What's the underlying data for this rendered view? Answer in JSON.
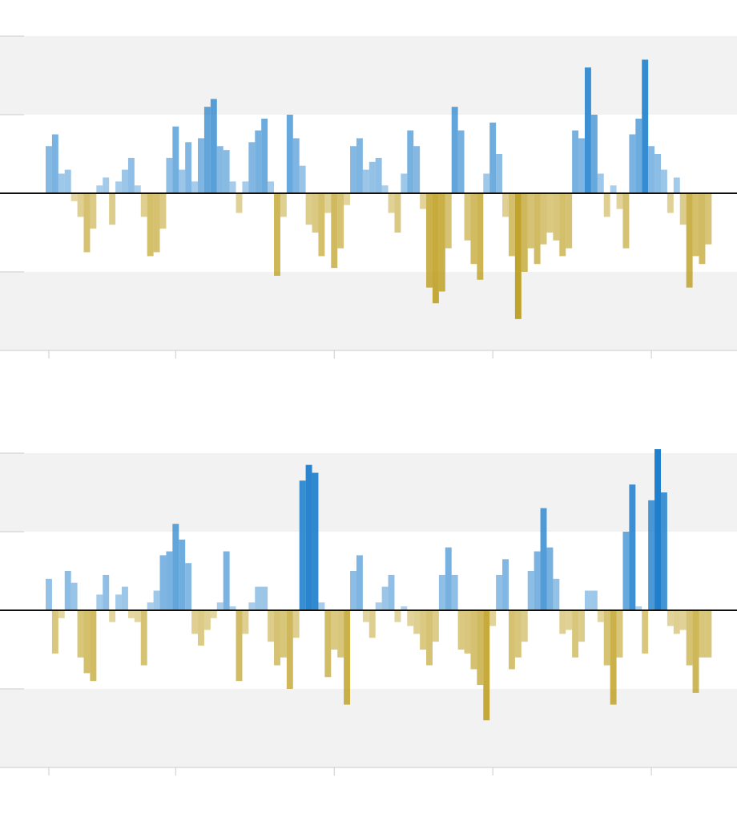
{
  "chart_data": [
    {
      "type": "bar",
      "positive_color": "#1f7fcc",
      "negative_color": "#b8960c",
      "grid": true,
      "xlim": [
        1887.3,
        2003.5
      ],
      "xticks": [
        1895,
        1915,
        1940,
        1965,
        1990
      ],
      "ylim": [
        -4,
        4
      ],
      "yticks": [
        -4,
        -2,
        0,
        2,
        4
      ],
      "x": [
        1895,
        1896,
        1897,
        1898,
        1899,
        1900,
        1901,
        1902,
        1903,
        1904,
        1905,
        1906,
        1907,
        1908,
        1909,
        1910,
        1911,
        1912,
        1913,
        1914,
        1915,
        1916,
        1917,
        1918,
        1919,
        1920,
        1921,
        1922,
        1923,
        1924,
        1925,
        1926,
        1927,
        1928,
        1929,
        1930,
        1931,
        1932,
        1933,
        1934,
        1935,
        1936,
        1937,
        1938,
        1939,
        1940,
        1941,
        1942,
        1943,
        1944,
        1945,
        1946,
        1947,
        1948,
        1949,
        1950,
        1951,
        1952,
        1953,
        1954,
        1955,
        1956,
        1957,
        1958,
        1959,
        1960,
        1961,
        1962,
        1963,
        1964,
        1965,
        1966,
        1967,
        1968,
        1969,
        1970,
        1971,
        1972,
        1973,
        1974,
        1975,
        1976,
        1977,
        1978,
        1979,
        1980,
        1981,
        1982,
        1983,
        1984,
        1985,
        1986,
        1987,
        1988,
        1989,
        1990,
        1991,
        1992,
        1993,
        1994,
        1995,
        1996,
        1997,
        1998,
        1999
      ],
      "values": [
        1.2,
        1.5,
        0.5,
        0.6,
        -0.2,
        -0.6,
        -1.5,
        -0.9,
        0.2,
        0.4,
        -0.8,
        0.3,
        0.6,
        0.9,
        0.2,
        -0.6,
        -1.6,
        -1.5,
        -0.9,
        0.9,
        1.7,
        0.6,
        1.3,
        0.3,
        1.4,
        2.2,
        2.4,
        1.2,
        1.1,
        0.3,
        -0.5,
        0.3,
        1.3,
        1.6,
        1.9,
        0.3,
        -2.1,
        -0.6,
        2.0,
        1.4,
        0.7,
        -0.8,
        -1.0,
        -1.6,
        -0.5,
        -1.9,
        -1.4,
        -0.3,
        1.2,
        1.4,
        0.6,
        0.8,
        0.9,
        0.2,
        -0.5,
        -1.0,
        0.5,
        1.6,
        1.2,
        -0.4,
        -2.4,
        -2.8,
        -2.5,
        -1.4,
        2.2,
        1.6,
        -1.2,
        -1.8,
        -2.2,
        0.5,
        1.8,
        1.0,
        -0.6,
        -1.6,
        -3.2,
        -2.0,
        -1.4,
        -1.8,
        -1.3,
        -1.0,
        -1.2,
        -1.6,
        -1.4,
        1.6,
        1.4,
        3.2,
        2.0,
        0.5,
        -0.6,
        0.2,
        -0.4,
        -1.4,
        1.5,
        1.9,
        3.4,
        1.2,
        1.0,
        0.6,
        -0.5,
        0.4,
        -0.8,
        -2.4,
        -1.6,
        -1.8,
        -1.3
      ]
    },
    {
      "type": "bar",
      "positive_color": "#1f7fcc",
      "negative_color": "#b8960c",
      "grid": true,
      "xlim": [
        1887.3,
        2003.5
      ],
      "xticks": [
        1895,
        1915,
        1940,
        1965,
        1990
      ],
      "ylim": [
        -4,
        4
      ],
      "yticks": [
        -4,
        -2,
        0,
        2,
        4
      ],
      "x": [
        1895,
        1896,
        1897,
        1898,
        1899,
        1900,
        1901,
        1902,
        1903,
        1904,
        1905,
        1906,
        1907,
        1908,
        1909,
        1910,
        1911,
        1912,
        1913,
        1914,
        1915,
        1916,
        1917,
        1918,
        1919,
        1920,
        1921,
        1922,
        1923,
        1924,
        1925,
        1926,
        1927,
        1928,
        1929,
        1930,
        1931,
        1932,
        1933,
        1934,
        1935,
        1936,
        1937,
        1938,
        1939,
        1940,
        1941,
        1942,
        1943,
        1944,
        1945,
        1946,
        1947,
        1948,
        1949,
        1950,
        1951,
        1952,
        1953,
        1954,
        1955,
        1956,
        1957,
        1958,
        1959,
        1960,
        1961,
        1962,
        1963,
        1964,
        1965,
        1966,
        1967,
        1968,
        1969,
        1970,
        1971,
        1972,
        1973,
        1974,
        1975,
        1976,
        1977,
        1978,
        1979,
        1980,
        1981,
        1982,
        1983,
        1984,
        1985,
        1986,
        1987,
        1988,
        1989,
        1990,
        1991,
        1992,
        1993,
        1994,
        1995,
        1996,
        1997,
        1998,
        1999
      ],
      "values": [
        0.8,
        -1.1,
        -0.2,
        1.0,
        0.7,
        -1.2,
        -1.6,
        -1.8,
        0.4,
        0.9,
        -0.3,
        0.4,
        0.6,
        -0.2,
        -0.3,
        -1.4,
        0.2,
        0.5,
        1.4,
        1.5,
        2.2,
        1.8,
        1.2,
        -0.6,
        -0.9,
        -0.5,
        -0.2,
        0.2,
        1.5,
        0.1,
        -1.8,
        -0.6,
        0.2,
        0.6,
        0.6,
        -0.8,
        -1.4,
        -1.2,
        -2.0,
        -0.7,
        3.3,
        3.7,
        3.5,
        0.2,
        -1.7,
        -1.0,
        -1.2,
        -2.4,
        1.0,
        1.4,
        -0.3,
        -0.7,
        0.2,
        0.6,
        0.9,
        -0.3,
        0.1,
        -0.4,
        -0.6,
        -1.0,
        -1.4,
        -0.8,
        0.9,
        1.6,
        0.9,
        -1.0,
        -1.1,
        -1.5,
        -1.9,
        -2.8,
        -0.4,
        0.9,
        1.3,
        -1.5,
        -1.2,
        -0.8,
        1.0,
        1.5,
        2.6,
        1.6,
        0.8,
        -0.6,
        -0.5,
        -1.2,
        -0.8,
        0.5,
        0.5,
        -0.3,
        -1.4,
        -2.4,
        -1.2,
        2.0,
        3.2,
        0.1,
        -1.1,
        2.8,
        4.1,
        3.0,
        -0.4,
        -0.6,
        -0.5,
        -1.4,
        -2.1,
        -1.2,
        -1.2
      ]
    }
  ]
}
